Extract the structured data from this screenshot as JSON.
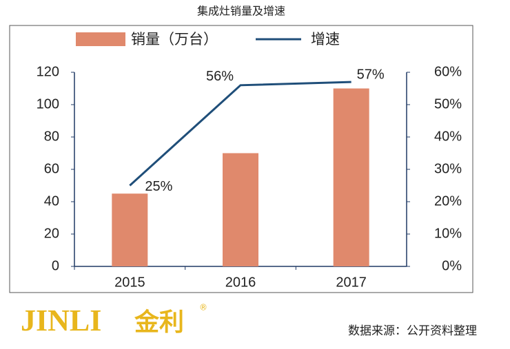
{
  "chart_data": {
    "type": "bar_line",
    "title": "集成灶销量及增速",
    "categories": [
      "2015",
      "2016",
      "2017"
    ],
    "series": [
      {
        "name": "销量（万台）",
        "type": "bar",
        "color": "#e0896c",
        "values": [
          45,
          70,
          110
        ]
      },
      {
        "name": "增速",
        "type": "line",
        "axis": "y2",
        "color": "#1f4e79",
        "values": [
          25,
          56,
          57
        ],
        "value_labels": [
          "25%",
          "56%",
          "57%"
        ]
      }
    ],
    "ylim": [
      0,
      120
    ],
    "yticks": [
      0,
      20,
      40,
      60,
      80,
      100,
      120
    ],
    "y2lim": [
      0,
      60
    ],
    "y2ticks": [
      {
        "value": 0,
        "label": "0%"
      },
      {
        "value": 10,
        "label": "10%"
      },
      {
        "value": 20,
        "label": "20%"
      },
      {
        "value": 30,
        "label": "30%"
      },
      {
        "value": 40,
        "label": "40%"
      },
      {
        "value": 50,
        "label": "50%"
      },
      {
        "value": 60,
        "label": "60%"
      }
    ],
    "grid": false
  },
  "logo": "JINLI",
  "logo_cn": "金利",
  "logo_mark": "®",
  "source": "数据来源：公开资料整理"
}
